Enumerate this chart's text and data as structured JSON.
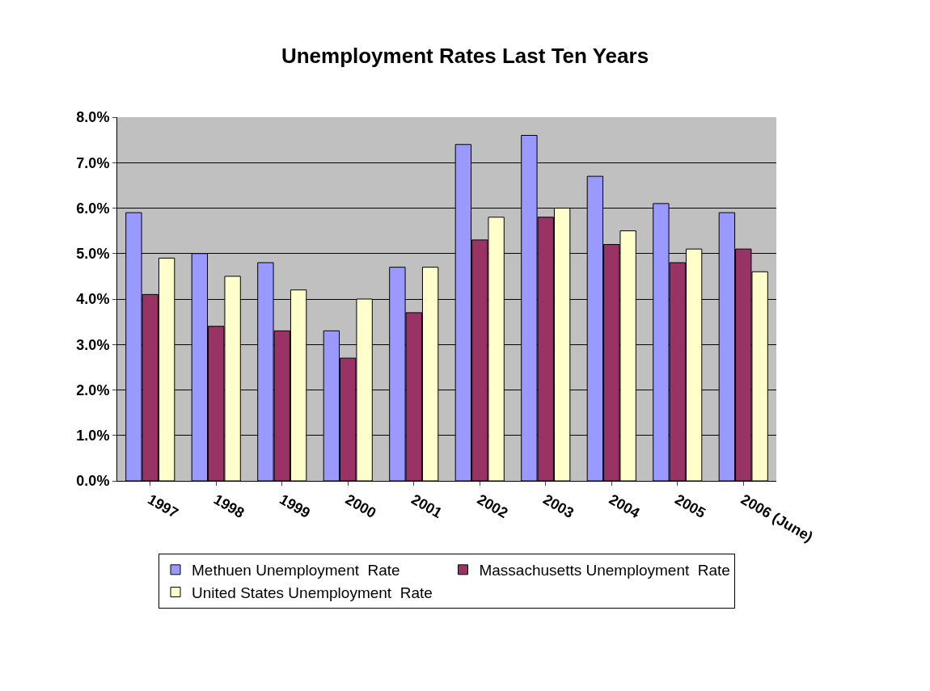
{
  "chart_data": {
    "type": "bar",
    "title": "Unemployment Rates Last Ten Years",
    "categories": [
      "1997",
      "1998",
      "1999",
      "2000",
      "2001",
      "2002",
      "2003",
      "2004",
      "2005",
      "2006 (June)"
    ],
    "series": [
      {
        "name": "Methuen Unemployment  Rate",
        "color": "#9999ff",
        "values": [
          5.9,
          5.0,
          4.8,
          3.3,
          4.7,
          7.4,
          7.6,
          6.7,
          6.1,
          5.9
        ]
      },
      {
        "name": "Massachusetts Unemployment  Rate",
        "color": "#993366",
        "values": [
          4.1,
          3.4,
          3.3,
          2.7,
          3.7,
          5.3,
          5.8,
          5.2,
          4.8,
          5.1
        ]
      },
      {
        "name": "United States Unemployment  Rate",
        "color": "#ffffcc",
        "values": [
          4.9,
          4.5,
          4.2,
          4.0,
          4.7,
          5.8,
          6.0,
          5.5,
          5.1,
          4.6
        ]
      }
    ],
    "ylim": [
      0,
      8
    ],
    "yticks": [
      {
        "value": 0,
        "label": "0.0%"
      },
      {
        "value": 1,
        "label": "1.0%"
      },
      {
        "value": 2,
        "label": "2.0%"
      },
      {
        "value": 3,
        "label": "3.0%"
      },
      {
        "value": 4,
        "label": "4.0%"
      },
      {
        "value": 5,
        "label": "5.0%"
      },
      {
        "value": 6,
        "label": "6.0%"
      },
      {
        "value": 7,
        "label": "7.0%"
      },
      {
        "value": 8,
        "label": "8.0%"
      }
    ],
    "grid": "y",
    "legend": "bottom"
  }
}
